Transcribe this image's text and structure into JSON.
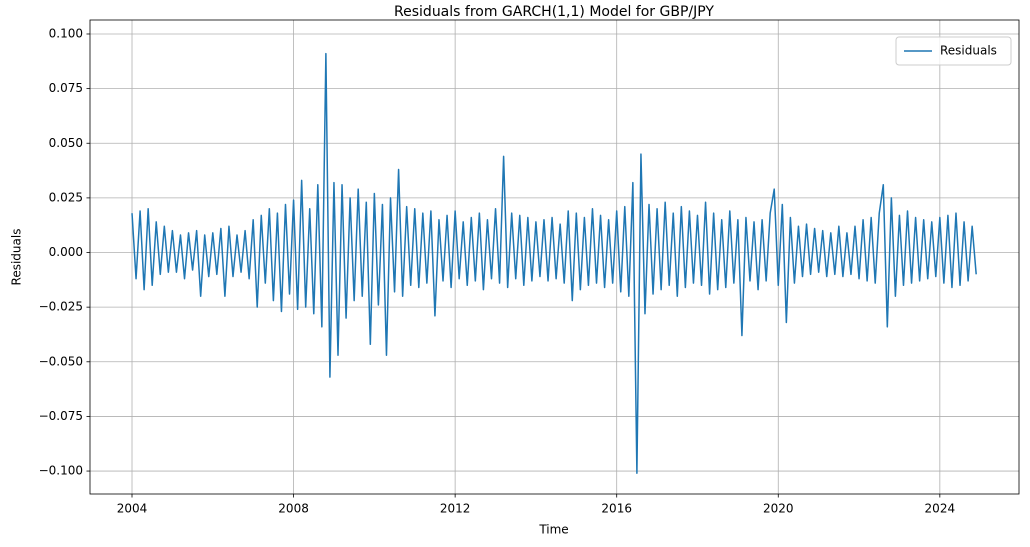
{
  "chart_data": {
    "type": "line",
    "title": "Residuals from GARCH(1,1) Model for GBP/JPY",
    "x_label": "Time",
    "y_label": "Residuals",
    "xlim": [
      2002.96,
      2025.96
    ],
    "xticks": [
      2004,
      2008,
      2012,
      2016,
      2020,
      2024
    ],
    "ylim": [
      -0.1105,
      0.1064
    ],
    "yticks": [
      {
        "value": -0.1,
        "label": "−0.100"
      },
      {
        "value": -0.075,
        "label": "−0.075"
      },
      {
        "value": -0.05,
        "label": "−0.050"
      },
      {
        "value": -0.025,
        "label": "−0.025"
      },
      {
        "value": 0,
        "label": "0.000"
      },
      {
        "value": 0.025,
        "label": "0.025"
      },
      {
        "value": 0.05,
        "label": "0.050"
      },
      {
        "value": 0.075,
        "label": "0.075"
      },
      {
        "value": 0.1,
        "label": "0.100"
      }
    ],
    "grid": true,
    "legend": "upper right",
    "x": [
      2004.0,
      2004.1,
      2004.2,
      2004.3,
      2004.4,
      2004.5,
      2004.6,
      2004.7,
      2004.8,
      2004.9,
      2005.0,
      2005.1,
      2005.2,
      2005.3,
      2005.4,
      2005.5,
      2005.6,
      2005.7,
      2005.8,
      2005.9,
      2006.0,
      2006.1,
      2006.2,
      2006.3,
      2006.4,
      2006.5,
      2006.6,
      2006.7,
      2006.8,
      2006.9,
      2007.0,
      2007.1,
      2007.2,
      2007.3,
      2007.4,
      2007.5,
      2007.6,
      2007.7,
      2007.8,
      2007.9,
      2008.0,
      2008.1,
      2008.2,
      2008.3,
      2008.4,
      2008.5,
      2008.6,
      2008.7,
      2008.8,
      2008.9,
      2009.0,
      2009.1,
      2009.2,
      2009.3,
      2009.4,
      2009.5,
      2009.6,
      2009.7,
      2009.8,
      2009.9,
      2010.0,
      2010.1,
      2010.2,
      2010.3,
      2010.4,
      2010.5,
      2010.6,
      2010.7,
      2010.8,
      2010.9,
      2011.0,
      2011.1,
      2011.2,
      2011.3,
      2011.4,
      2011.5,
      2011.6,
      2011.7,
      2011.8,
      2011.9,
      2012.0,
      2012.1,
      2012.2,
      2012.3,
      2012.4,
      2012.5,
      2012.6,
      2012.7,
      2012.8,
      2012.9,
      2013.0,
      2013.1,
      2013.2,
      2013.3,
      2013.4,
      2013.5,
      2013.6,
      2013.7,
      2013.8,
      2013.9,
      2014.0,
      2014.1,
      2014.2,
      2014.3,
      2014.4,
      2014.5,
      2014.6,
      2014.7,
      2014.8,
      2014.9,
      2015.0,
      2015.1,
      2015.2,
      2015.3,
      2015.4,
      2015.5,
      2015.6,
      2015.7,
      2015.8,
      2015.9,
      2016.0,
      2016.1,
      2016.2,
      2016.3,
      2016.4,
      2016.5,
      2016.6,
      2016.7,
      2016.8,
      2016.9,
      2017.0,
      2017.1,
      2017.2,
      2017.3,
      2017.4,
      2017.5,
      2017.6,
      2017.7,
      2017.8,
      2017.9,
      2018.0,
      2018.1,
      2018.2,
      2018.3,
      2018.4,
      2018.5,
      2018.6,
      2018.7,
      2018.8,
      2018.9,
      2019.0,
      2019.1,
      2019.2,
      2019.3,
      2019.4,
      2019.5,
      2019.6,
      2019.7,
      2019.8,
      2019.9,
      2020.0,
      2020.1,
      2020.2,
      2020.3,
      2020.4,
      2020.5,
      2020.6,
      2020.7,
      2020.8,
      2020.9,
      2021.0,
      2021.1,
      2021.2,
      2021.3,
      2021.4,
      2021.5,
      2021.6,
      2021.7,
      2021.8,
      2021.9,
      2022.0,
      2022.1,
      2022.2,
      2022.3,
      2022.4,
      2022.5,
      2022.6,
      2022.7,
      2022.8,
      2022.9,
      2023.0,
      2023.1,
      2023.2,
      2023.3,
      2023.4,
      2023.5,
      2023.6,
      2023.7,
      2023.8,
      2023.9,
      2024.0,
      2024.1,
      2024.2,
      2024.3,
      2024.4,
      2024.5,
      2024.6,
      2024.7,
      2024.8,
      2024.9
    ],
    "series": [
      {
        "name": "Residuals",
        "color": "#1f77b4",
        "values": [
          0.018,
          -0.012,
          0.019,
          -0.017,
          0.02,
          -0.015,
          0.014,
          -0.01,
          0.012,
          -0.009,
          0.01,
          -0.009,
          0.008,
          -0.012,
          0.009,
          -0.008,
          0.01,
          -0.02,
          0.008,
          -0.011,
          0.009,
          -0.01,
          0.011,
          -0.02,
          0.012,
          -0.011,
          0.008,
          -0.009,
          0.01,
          -0.012,
          0.015,
          -0.025,
          0.017,
          -0.014,
          0.02,
          -0.022,
          0.018,
          -0.027,
          0.022,
          -0.019,
          0.024,
          -0.026,
          0.033,
          -0.025,
          0.02,
          -0.028,
          0.031,
          -0.034,
          0.091,
          -0.057,
          0.032,
          -0.047,
          0.031,
          -0.03,
          0.025,
          -0.022,
          0.029,
          -0.02,
          0.023,
          -0.042,
          0.027,
          -0.024,
          0.022,
          -0.047,
          0.025,
          -0.018,
          0.038,
          -0.02,
          0.021,
          -0.015,
          0.02,
          -0.016,
          0.018,
          -0.014,
          0.019,
          -0.029,
          0.015,
          -0.013,
          0.017,
          -0.016,
          0.019,
          -0.012,
          0.014,
          -0.015,
          0.016,
          -0.013,
          0.018,
          -0.017,
          0.015,
          -0.012,
          0.02,
          -0.014,
          0.044,
          -0.016,
          0.018,
          -0.012,
          0.017,
          -0.015,
          0.016,
          -0.013,
          0.014,
          -0.011,
          0.015,
          -0.013,
          0.016,
          -0.012,
          0.013,
          -0.014,
          0.019,
          -0.022,
          0.018,
          -0.017,
          0.016,
          -0.015,
          0.02,
          -0.014,
          0.017,
          -0.016,
          0.015,
          -0.014,
          0.019,
          -0.018,
          0.021,
          -0.02,
          0.032,
          -0.101,
          0.045,
          -0.028,
          0.022,
          -0.019,
          0.02,
          -0.017,
          0.023,
          -0.015,
          0.018,
          -0.02,
          0.021,
          -0.016,
          0.019,
          -0.014,
          0.017,
          -0.015,
          0.023,
          -0.019,
          0.018,
          -0.017,
          0.015,
          -0.016,
          0.019,
          -0.014,
          0.015,
          -0.038,
          0.016,
          -0.013,
          0.014,
          -0.017,
          0.015,
          -0.013,
          0.018,
          0.029,
          -0.015,
          0.022,
          -0.032,
          0.016,
          -0.014,
          0.012,
          -0.011,
          0.013,
          -0.01,
          0.011,
          -0.009,
          0.01,
          -0.011,
          0.009,
          -0.01,
          0.012,
          -0.011,
          0.009,
          -0.01,
          0.012,
          -0.012,
          0.015,
          -0.013,
          0.016,
          -0.014,
          0.018,
          0.031,
          -0.034,
          0.025,
          -0.02,
          0.017,
          -0.015,
          0.019,
          -0.014,
          0.016,
          -0.013,
          0.015,
          -0.012,
          0.014,
          -0.011,
          0.016,
          -0.014,
          0.017,
          -0.016,
          0.018,
          -0.015,
          0.014,
          -0.013,
          0.012,
          -0.01
        ]
      }
    ]
  }
}
